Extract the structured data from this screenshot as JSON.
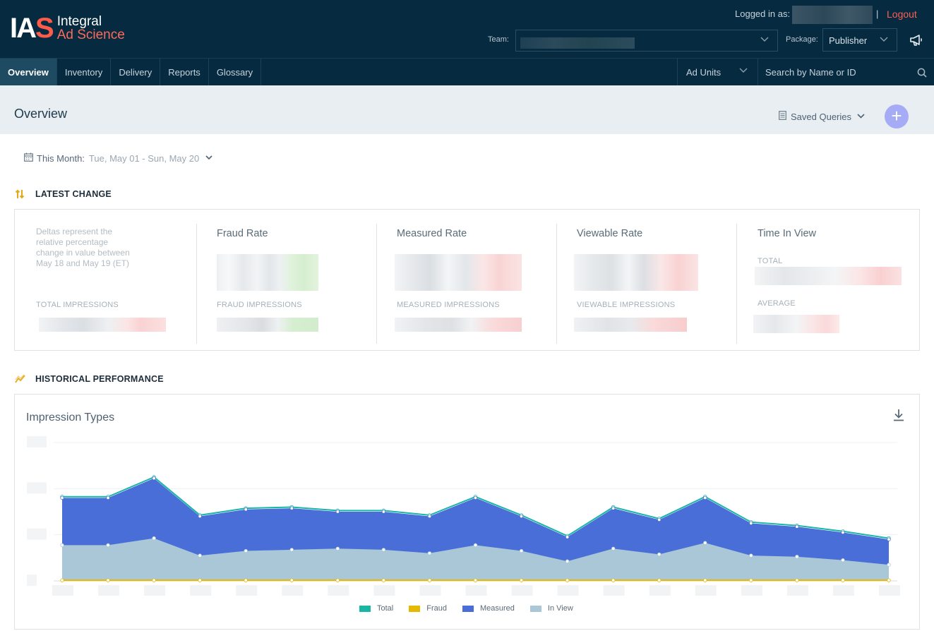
{
  "brand": {
    "logo_mark": "IAS",
    "name_line1": "Integral",
    "name_line2": "Ad Science"
  },
  "header": {
    "logged_in_label": "Logged in as:",
    "separator": "|",
    "logout_label": "Logout",
    "team_label": "Team:",
    "package_label": "Package:",
    "package_value": "Publisher",
    "announcements_icon": "megaphone-icon"
  },
  "nav": {
    "tabs": [
      {
        "label": "Overview",
        "active": true
      },
      {
        "label": "Inventory"
      },
      {
        "label": "Delivery"
      },
      {
        "label": "Reports"
      },
      {
        "label": "Glossary"
      }
    ],
    "ad_units_label": "Ad Units",
    "search_placeholder": "Search by Name or ID"
  },
  "page": {
    "title": "Overview",
    "saved_queries_label": "Saved Queries",
    "add_button": "+"
  },
  "date_range": {
    "label": "This Month:",
    "value": "Tue, May 01 - Sun, May 20"
  },
  "latest_change": {
    "title": "LATEST CHANGE",
    "note": "Deltas represent the relative percentage change in value between May 18 and May 19 (ET)",
    "total_impressions_label": "TOTAL IMPRESSIONS",
    "metrics": [
      {
        "title": "Fraud Rate",
        "sub_label": "FRAUD IMPRESSIONS"
      },
      {
        "title": "Measured Rate",
        "sub_label": "MEASURED IMPRESSIONS"
      },
      {
        "title": "Viewable Rate",
        "sub_label": "VIEWABLE IMPRESSIONS"
      },
      {
        "title": "Time In View",
        "total_label": "TOTAL",
        "average_label": "AVERAGE"
      }
    ]
  },
  "historical": {
    "title": "HISTORICAL PERFORMANCE",
    "chart_title": "Impression Types"
  },
  "chart_data": {
    "type": "area",
    "title": "Impression Types",
    "series": [
      {
        "name": "Total",
        "color": "#19b5a5",
        "values": [
          0.73,
          0.73,
          0.9,
          0.57,
          0.63,
          0.64,
          0.61,
          0.61,
          0.57,
          0.73,
          0.57,
          0.39,
          0.64,
          0.54,
          0.73,
          0.51,
          0.48,
          0.43,
          0.37
        ]
      },
      {
        "name": "Fraud",
        "color": "#e6b800",
        "values": [
          0.005,
          0.005,
          0.005,
          0.005,
          0.005,
          0.005,
          0.005,
          0.005,
          0.005,
          0.005,
          0.005,
          0.005,
          0.005,
          0.005,
          0.005,
          0.005,
          0.005,
          0.005,
          0.005
        ]
      },
      {
        "name": "Measured",
        "color": "#4a6ed8",
        "values": [
          0.72,
          0.72,
          0.89,
          0.56,
          0.62,
          0.63,
          0.6,
          0.6,
          0.56,
          0.72,
          0.56,
          0.38,
          0.63,
          0.53,
          0.72,
          0.5,
          0.47,
          0.42,
          0.36
        ]
      },
      {
        "name": "In View",
        "color": "#a9c7d6",
        "values": [
          0.31,
          0.31,
          0.37,
          0.22,
          0.26,
          0.27,
          0.28,
          0.27,
          0.24,
          0.31,
          0.26,
          0.17,
          0.28,
          0.23,
          0.33,
          0.22,
          0.21,
          0.18,
          0.14
        ]
      }
    ],
    "ylim": [
      0,
      1.2
    ],
    "grid": true,
    "legend_position": "bottom-center",
    "axis_labels_hidden": true
  }
}
